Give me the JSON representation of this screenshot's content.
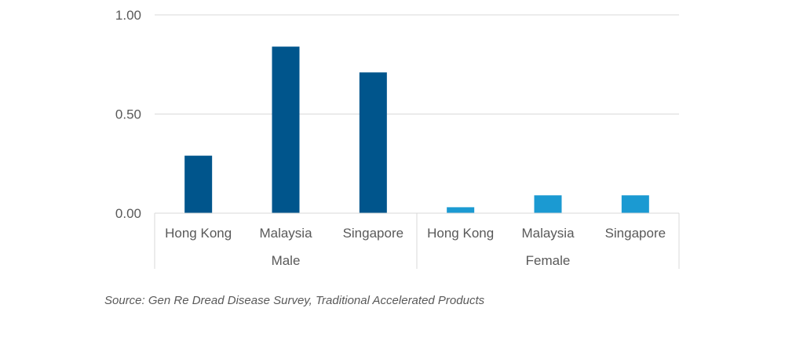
{
  "chart_data": {
    "type": "bar",
    "title": "",
    "xlabel": "",
    "ylabel": "",
    "ylim": [
      0,
      1
    ],
    "yticks": [
      "0.00",
      "0.50",
      "1.00"
    ],
    "ytick_values": [
      0,
      0.5,
      1
    ],
    "grid": true,
    "groups": [
      {
        "name": "Male",
        "color": "#00558C",
        "categories": [
          "Hong Kong",
          "Malaysia",
          "Singapore"
        ],
        "values": [
          0.29,
          0.84,
          0.71
        ]
      },
      {
        "name": "Female",
        "color": "#1B9AD2",
        "categories": [
          "Hong Kong",
          "Malaysia",
          "Singapore"
        ],
        "values": [
          0.03,
          0.09,
          0.09
        ]
      }
    ]
  },
  "source": "Source: Gen Re Dread Disease Survey, Traditional Accelerated Products"
}
